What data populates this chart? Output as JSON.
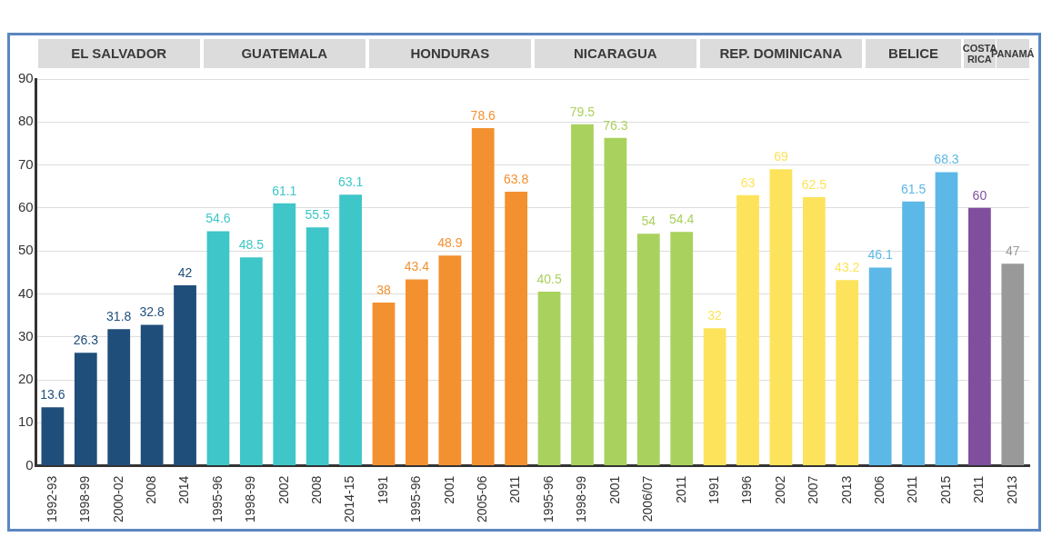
{
  "chart_data": {
    "type": "bar",
    "categories": [
      "1992-93",
      "1998-99",
      "2000-02",
      "2008",
      "2014",
      "1995-96",
      "1998-99",
      "2002",
      "2008",
      "2014-15",
      "1991",
      "1995-96",
      "2001",
      "2005-06",
      "2011",
      "1995-96",
      "1998-99",
      "2001",
      "2006/07",
      "2011",
      "1991",
      "1996",
      "2002",
      "2007",
      "2013",
      "2006",
      "2011",
      "2015",
      "2011",
      "2013"
    ],
    "series": [
      {
        "color": "#1f4e7a",
        "values": [
          13.6,
          26.3,
          31.8,
          32.8,
          42,
          null,
          null,
          null,
          null,
          null,
          null,
          null,
          null,
          null,
          null,
          null,
          null,
          null,
          null,
          null,
          null,
          null,
          null,
          null,
          null,
          null,
          null,
          null,
          null,
          null
        ]
      },
      {
        "color": "#3ec6c8",
        "values": [
          null,
          null,
          null,
          null,
          null,
          54.6,
          48.5,
          61.1,
          55.5,
          63.1,
          null,
          null,
          null,
          null,
          null,
          null,
          null,
          null,
          null,
          null,
          null,
          null,
          null,
          null,
          null,
          null,
          null,
          null,
          null,
          null
        ]
      },
      {
        "color": "#f39130",
        "values": [
          null,
          null,
          null,
          null,
          null,
          null,
          null,
          null,
          null,
          null,
          38,
          43.4,
          48.9,
          78.6,
          63.8,
          null,
          null,
          null,
          null,
          null,
          null,
          null,
          null,
          null,
          null,
          null,
          null,
          null,
          null,
          null
        ]
      },
      {
        "color": "#a9d15d",
        "values": [
          null,
          null,
          null,
          null,
          null,
          null,
          null,
          null,
          null,
          null,
          null,
          null,
          null,
          null,
          null,
          40.5,
          79.5,
          76.3,
          54,
          54.4,
          null,
          null,
          null,
          null,
          null,
          null,
          null,
          null,
          null,
          null
        ]
      },
      {
        "color": "#fde35b",
        "values": [
          null,
          null,
          null,
          null,
          null,
          null,
          null,
          null,
          null,
          null,
          null,
          null,
          null,
          null,
          null,
          null,
          null,
          null,
          null,
          null,
          32,
          63,
          69,
          62.5,
          43.2,
          null,
          null,
          null,
          null,
          null
        ]
      },
      {
        "color": "#5cb8e6",
        "values": [
          null,
          null,
          null,
          null,
          null,
          null,
          null,
          null,
          null,
          null,
          null,
          null,
          null,
          null,
          null,
          null,
          null,
          null,
          null,
          null,
          null,
          null,
          null,
          null,
          null,
          46.1,
          61.5,
          68.3,
          null,
          null
        ]
      },
      {
        "color": "#7f4f9e",
        "values": [
          null,
          null,
          null,
          null,
          null,
          null,
          null,
          null,
          null,
          null,
          null,
          null,
          null,
          null,
          null,
          null,
          null,
          null,
          null,
          null,
          null,
          null,
          null,
          null,
          null,
          null,
          null,
          null,
          60,
          null
        ]
      },
      {
        "color": "#999999",
        "values": [
          null,
          null,
          null,
          null,
          null,
          null,
          null,
          null,
          null,
          null,
          null,
          null,
          null,
          null,
          null,
          null,
          null,
          null,
          null,
          null,
          null,
          null,
          null,
          null,
          null,
          null,
          null,
          null,
          null,
          47
        ]
      }
    ],
    "annotations": [
      "EL SALVADOR",
      "GUATEMALA",
      "HONDURAS",
      "NICARAGUA",
      "REP. DOMINICANA",
      "BELICE",
      "COSTA RICA",
      "PANAMÁ"
    ],
    "ylim": [
      0,
      90
    ],
    "yticks": [
      0,
      10,
      20,
      30,
      40,
      50,
      60,
      70,
      80,
      90
    ],
    "grid": "y",
    "legend": false,
    "data_labels": true
  }
}
